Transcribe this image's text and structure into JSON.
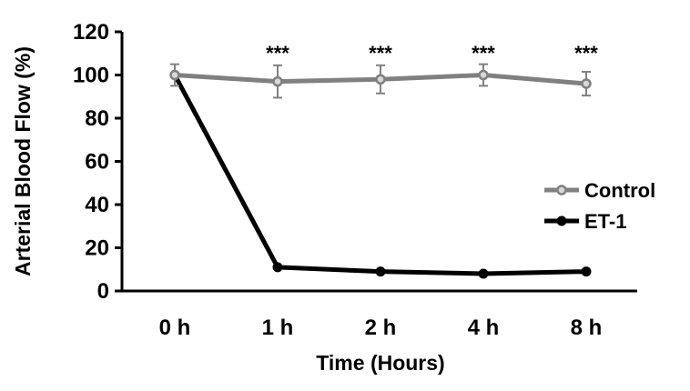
{
  "chart_data": {
    "type": "line",
    "title": "",
    "xlabel": "Time (Hours)",
    "ylabel": "Arterial Blood Flow (%)",
    "categories": [
      "0 h",
      "1 h",
      "2 h",
      "4 h",
      "8 h"
    ],
    "ylim": [
      0,
      120
    ],
    "yticks": [
      0,
      20,
      40,
      60,
      80,
      100,
      120
    ],
    "grid": false,
    "legend_position": "right",
    "series": [
      {
        "name": "Control",
        "color": "#808080",
        "marker": "open-circle",
        "values": [
          100,
          97,
          98,
          100,
          96
        ],
        "errors": [
          5,
          7.5,
          6.5,
          5,
          5.5
        ]
      },
      {
        "name": "ET-1",
        "color": "#000000",
        "marker": "filled-circle",
        "values": [
          100,
          11,
          9,
          8,
          9
        ],
        "errors": [
          0,
          0,
          0,
          0,
          0
        ]
      }
    ],
    "annotations": [
      {
        "category": "1 h",
        "text": "***"
      },
      {
        "category": "2 h",
        "text": "***"
      },
      {
        "category": "4 h",
        "text": "***"
      },
      {
        "category": "8 h",
        "text": "***"
      }
    ]
  }
}
